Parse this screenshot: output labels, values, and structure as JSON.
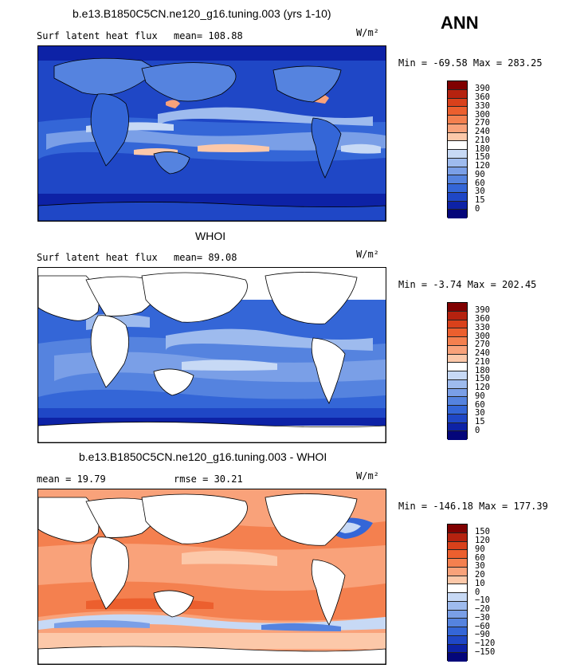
{
  "season": "ANN",
  "colors": {
    "ocean_model_low": "#1f3fc4",
    "ocean_mid": "#5a86e2",
    "ocean_light": "#b8cff2",
    "land": "#ffffff",
    "diff_pos": "#f08a57",
    "diff_pos_light": "#f6b895",
    "diff_neg": "#6a95e6"
  },
  "panels": [
    {
      "title": "b.e13.B1850C5CN.ne120_g16.tuning.003 (yrs 1-10)",
      "left_label": "Surf latent heat flux",
      "stat1": "mean= 108.88",
      "stat2": "",
      "units": "W/m²",
      "minmax": "Min = -69.58 Max = 283.25",
      "levels": [
        "390",
        "360",
        "330",
        "300",
        "270",
        "240",
        "210",
        "180",
        "150",
        "120",
        "90",
        "60",
        "30",
        "15",
        "0"
      ],
      "palette": [
        "#800000",
        "#b5220f",
        "#d9411b",
        "#ec5f2e",
        "#f4804f",
        "#f9a27a",
        "#fcc8a9",
        "#ffffff",
        "#c7d9f5",
        "#9ebbee",
        "#7a9fe7",
        "#5583df",
        "#3466d7",
        "#1f47c6",
        "#0d22a6",
        "#04067a"
      ]
    },
    {
      "title": "WHOI",
      "left_label": "Surf latent heat flux",
      "stat1": "mean=  89.08",
      "stat2": "",
      "units": "W/m²",
      "minmax": "Min =  -3.74 Max = 202.45",
      "levels": [
        "390",
        "360",
        "330",
        "300",
        "270",
        "240",
        "210",
        "180",
        "150",
        "120",
        "90",
        "60",
        "30",
        "15",
        "0"
      ],
      "palette": [
        "#800000",
        "#b5220f",
        "#d9411b",
        "#ec5f2e",
        "#f4804f",
        "#f9a27a",
        "#fcc8a9",
        "#ffffff",
        "#c7d9f5",
        "#9ebbee",
        "#7a9fe7",
        "#5583df",
        "#3466d7",
        "#1f47c6",
        "#0d22a6",
        "#04067a"
      ]
    },
    {
      "title": "b.e13.B1850C5CN.ne120_g16.tuning.003 - WHOI",
      "left_label": "mean =  19.79",
      "stat1": "rmse =  30.21",
      "stat2": "",
      "units": "W/m²",
      "minmax": "Min = -146.18 Max = 177.39",
      "levels": [
        "150",
        "120",
        "90",
        "60",
        "30",
        "20",
        "10",
        "0",
        "−10",
        "−20",
        "−30",
        "−60",
        "−90",
        "−120",
        "−150"
      ],
      "palette": [
        "#800000",
        "#b5220f",
        "#d9411b",
        "#ec5f2e",
        "#f4804f",
        "#f9a27a",
        "#fcc8a9",
        "#ffffff",
        "#c7d9f5",
        "#9ebbee",
        "#7a9fe7",
        "#5583df",
        "#3466d7",
        "#1f47c6",
        "#0d22a6",
        "#04067a"
      ]
    }
  ]
}
